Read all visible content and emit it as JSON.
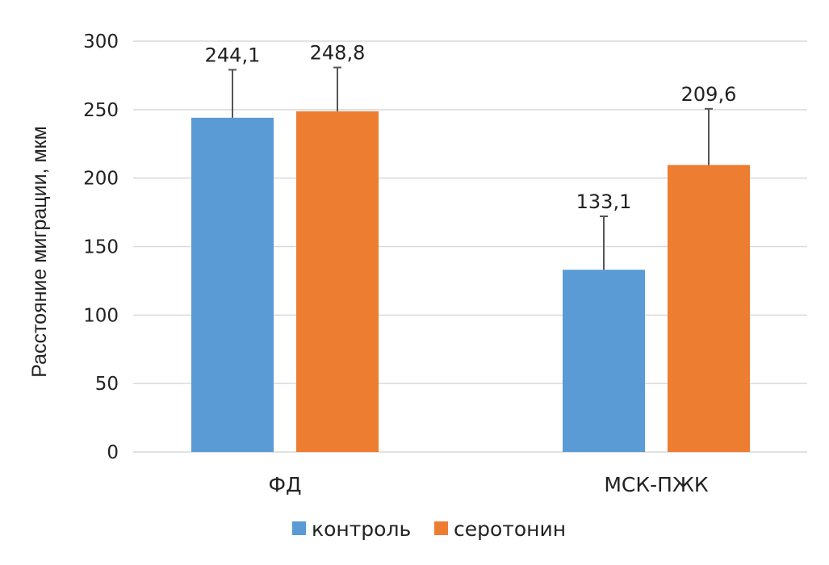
{
  "chart_data": {
    "type": "bar",
    "title": "",
    "xlabel": "",
    "ylabel": "Расстояние миграции, мкм",
    "ylim": [
      0,
      300
    ],
    "yticks": [
      0,
      50,
      100,
      150,
      200,
      250,
      300
    ],
    "grid": true,
    "legend_position": "bottom",
    "categories": [
      "ФД",
      "МСК-ПЖК"
    ],
    "series": [
      {
        "name": "контроль",
        "color": "#5b9bd5",
        "values": [
          244.1,
          133.1
        ],
        "errors": [
          35,
          39
        ],
        "labels": [
          "244,1",
          "133,1"
        ]
      },
      {
        "name": "серотонин",
        "color": "#ed7d31",
        "values": [
          248.8,
          209.6
        ],
        "errors": [
          32,
          41
        ],
        "labels": [
          "248,8",
          "209,6"
        ]
      }
    ]
  }
}
